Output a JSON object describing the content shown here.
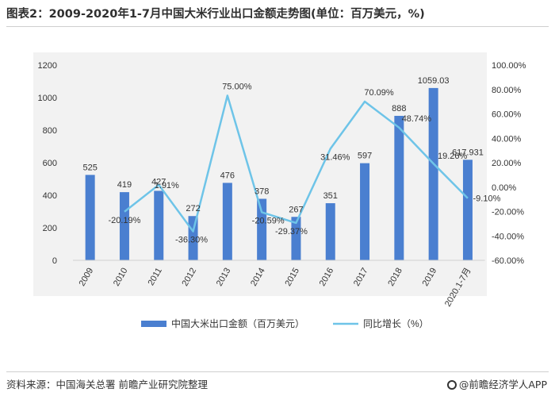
{
  "title": "图表2：2009-2020年1-7月中国大米行业出口金额走势图(单位：百万美元，%)",
  "source": "资料来源：中国海关总署 前瞻产业研究院整理",
  "brand": "@前瞻经济学人APP",
  "colors": {
    "bar": "#4a7fd0",
    "line": "#6ec4e8",
    "text": "#333333",
    "panel": "#f2f2f2"
  },
  "chart_data": {
    "type": "bar",
    "categories": [
      "2009",
      "2010",
      "2011",
      "2012",
      "2013",
      "2014",
      "2015",
      "2016",
      "2017",
      "2018",
      "2019",
      "2020.1-7月"
    ],
    "series": [
      {
        "name": "中国大米出口金额（百万美元）",
        "type": "bar",
        "values": [
          525,
          419,
          427,
          272,
          476,
          378,
          267,
          351,
          597,
          888,
          1059.03,
          617.931
        ],
        "labels": [
          "525",
          "419",
          "427",
          "272",
          "476",
          "378",
          "267",
          "351",
          "597",
          "888",
          "1059.03",
          "617.931"
        ]
      },
      {
        "name": "同比增长（%）",
        "type": "line",
        "axis": "right",
        "values": [
          null,
          -20.19,
          1.91,
          -36.3,
          75.0,
          -20.59,
          -29.37,
          31.46,
          70.09,
          48.74,
          19.26,
          -9.1
        ],
        "labels": [
          "",
          "-20.19%",
          "1.91%",
          "-36.30%",
          "75.00%",
          "-20.59%",
          "-29.37%",
          "31.46%",
          "70.09%",
          "48.74%",
          "19.26%",
          "-9.10%"
        ]
      }
    ],
    "y_left": {
      "min": 0,
      "max": 1200,
      "ticks": [
        "0",
        "200",
        "400",
        "600",
        "800",
        "1000",
        "1200"
      ]
    },
    "y_right": {
      "min": -60,
      "max": 100,
      "ticks": [
        "-60.00%",
        "-40.00%",
        "-20.00%",
        "0.00%",
        "20.00%",
        "40.00%",
        "60.00%",
        "80.00%",
        "100.00%"
      ]
    },
    "legend_position": "bottom",
    "grid": false
  }
}
